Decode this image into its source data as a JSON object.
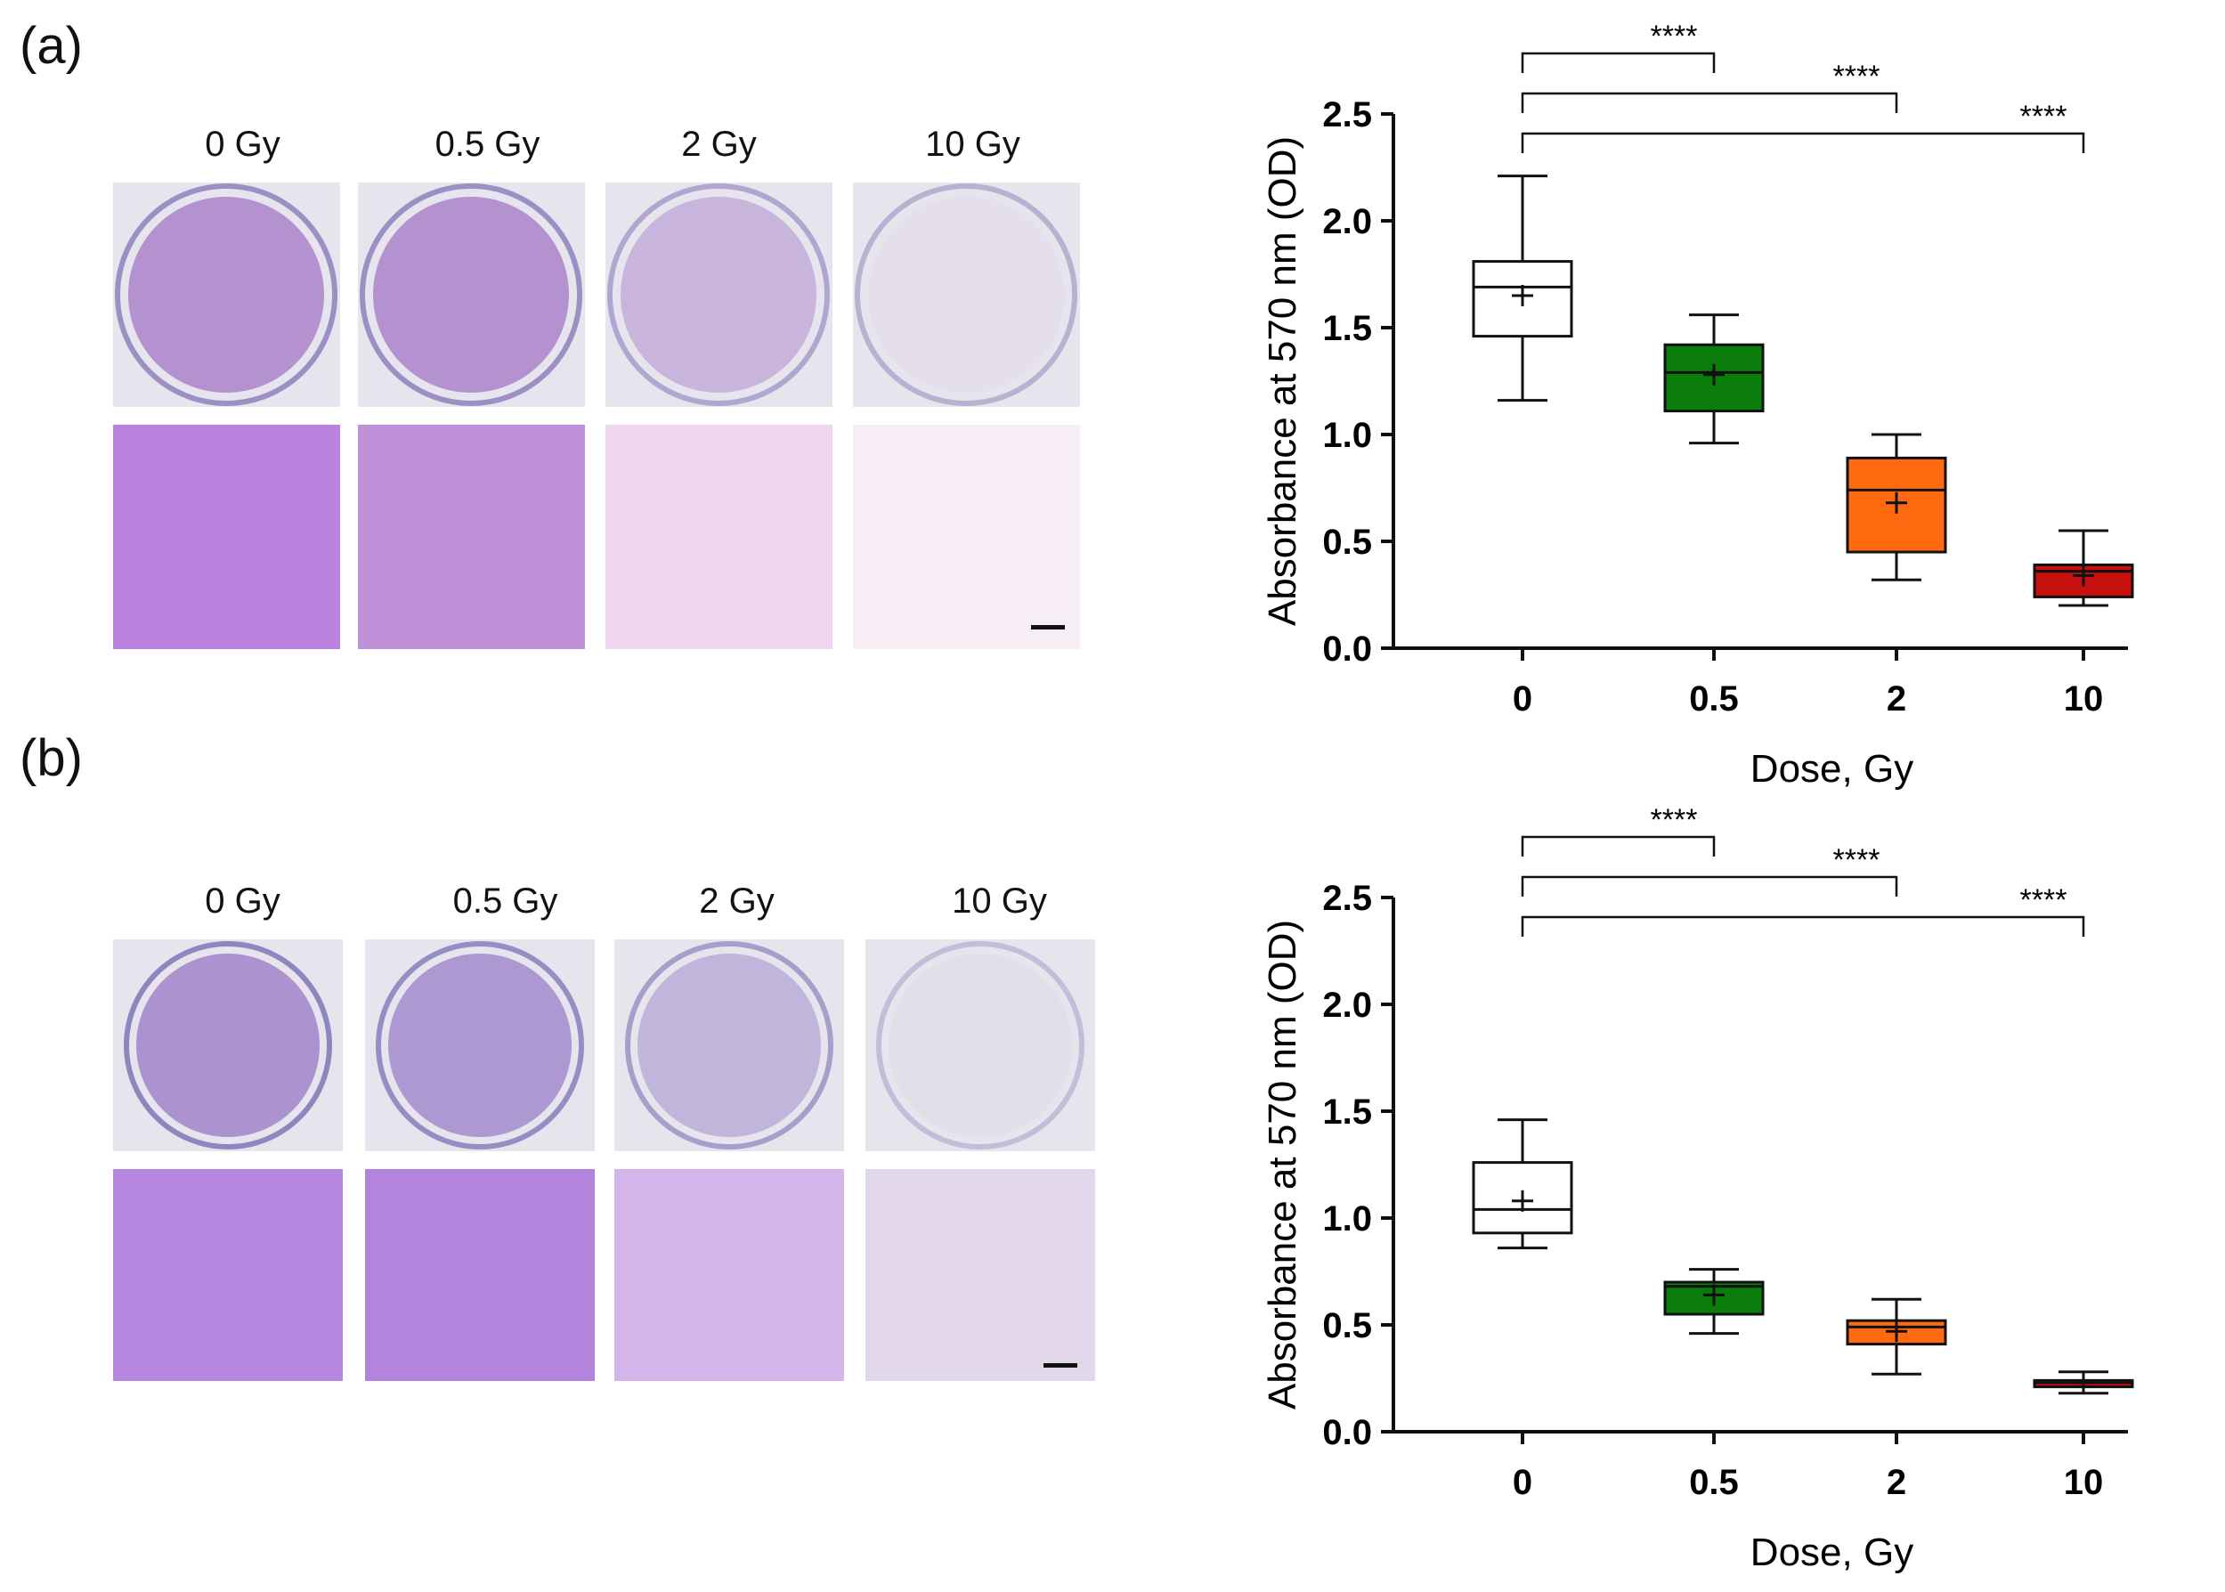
{
  "panels": [
    {
      "label": "(a)",
      "doses": [
        "0 Gy",
        "0.5 Gy",
        "2 Gy",
        "10 Gy"
      ],
      "dish_colors": [
        "#8a4fb8",
        "#8a4fb8",
        "#b18ed0",
        "#e2dbe9"
      ],
      "cell_colors": [
        "#a24fd3",
        "#a866cc",
        "#e9c9ec",
        "#f6eaf4"
      ]
    },
    {
      "label": "(b)",
      "doses": [
        "0 Gy",
        "0.5 Gy",
        "2 Gy",
        "10 Gy"
      ],
      "dish_colors": [
        "#7b50b8",
        "#7f59bd",
        "#a28ed0",
        "#dedbe8"
      ],
      "cell_colors": [
        "#9a56d6",
        "#9554d0",
        "#c49ae2",
        "#d9cbe4"
      ]
    }
  ],
  "chart_data": [
    {
      "type": "box",
      "title": "",
      "xlabel": "Dose, Gy",
      "ylabel": "Absorbance at 570 nm (OD)",
      "ylim": [
        0,
        2.5
      ],
      "yticks": [
        "0.0",
        "0.5",
        "1.0",
        "1.5",
        "2.0",
        "2.5"
      ],
      "categories": [
        "0",
        "0.5",
        "2",
        "10"
      ],
      "boxes": [
        {
          "min": 1.16,
          "q1": 1.46,
          "median": 1.69,
          "q3": 1.81,
          "max": 2.21,
          "mean": 1.65,
          "color": "#ffffff"
        },
        {
          "min": 0.96,
          "q1": 1.11,
          "median": 1.29,
          "q3": 1.42,
          "max": 1.56,
          "mean": 1.28,
          "color": "#0b7d0b"
        },
        {
          "min": 0.32,
          "q1": 0.45,
          "median": 0.74,
          "q3": 0.89,
          "max": 1.0,
          "mean": 0.68,
          "color": "#ff6a10"
        },
        {
          "min": 0.2,
          "q1": 0.24,
          "median": 0.36,
          "q3": 0.39,
          "max": 0.55,
          "mean": 0.34,
          "color": "#c81010"
        }
      ],
      "significance": [
        {
          "from": "0",
          "to": "0.5",
          "label": "****"
        },
        {
          "from": "0",
          "to": "2",
          "label": "****"
        },
        {
          "from": "0",
          "to": "10",
          "label": "****"
        }
      ]
    },
    {
      "type": "box",
      "title": "",
      "xlabel": "Dose, Gy",
      "ylabel": "Absorbance at 570 nm (OD)",
      "ylim": [
        0,
        2.5
      ],
      "yticks": [
        "0.0",
        "0.5",
        "1.0",
        "1.5",
        "2.0",
        "2.5"
      ],
      "categories": [
        "0",
        "0.5",
        "2",
        "10"
      ],
      "boxes": [
        {
          "min": 0.86,
          "q1": 0.93,
          "median": 1.04,
          "q3": 1.26,
          "max": 1.46,
          "mean": 1.08,
          "color": "#ffffff"
        },
        {
          "min": 0.46,
          "q1": 0.55,
          "median": 0.68,
          "q3": 0.7,
          "max": 0.76,
          "mean": 0.64,
          "color": "#0b7d0b"
        },
        {
          "min": 0.27,
          "q1": 0.41,
          "median": 0.49,
          "q3": 0.52,
          "max": 0.62,
          "mean": 0.47,
          "color": "#ff6a10"
        },
        {
          "min": 0.18,
          "q1": 0.21,
          "median": 0.23,
          "q3": 0.24,
          "max": 0.28,
          "mean": 0.23,
          "color": "#c81010"
        }
      ],
      "significance": [
        {
          "from": "0",
          "to": "0.5",
          "label": "****"
        },
        {
          "from": "0",
          "to": "2",
          "label": "****"
        },
        {
          "from": "0",
          "to": "10",
          "label": "****"
        }
      ]
    }
  ]
}
